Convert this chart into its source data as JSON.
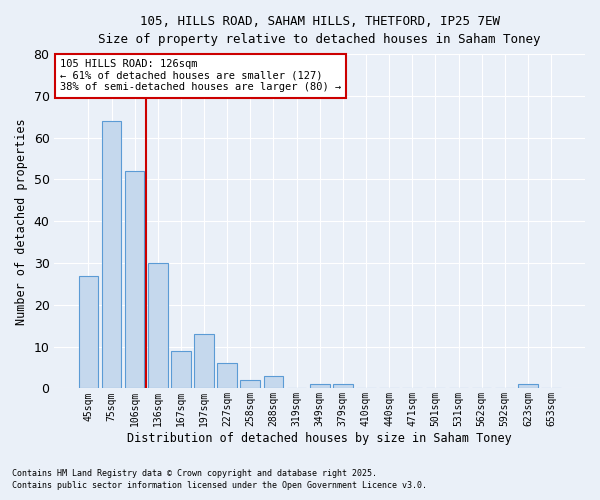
{
  "title1": "105, HILLS ROAD, SAHAM HILLS, THETFORD, IP25 7EW",
  "title2": "Size of property relative to detached houses in Saham Toney",
  "xlabel": "Distribution of detached houses by size in Saham Toney",
  "ylabel": "Number of detached properties",
  "categories": [
    "45sqm",
    "75sqm",
    "106sqm",
    "136sqm",
    "167sqm",
    "197sqm",
    "227sqm",
    "258sqm",
    "288sqm",
    "319sqm",
    "349sqm",
    "379sqm",
    "410sqm",
    "440sqm",
    "471sqm",
    "501sqm",
    "531sqm",
    "562sqm",
    "592sqm",
    "623sqm",
    "653sqm"
  ],
  "values": [
    27,
    64,
    52,
    30,
    9,
    13,
    6,
    2,
    3,
    0,
    1,
    1,
    0,
    0,
    0,
    0,
    0,
    0,
    0,
    1,
    0
  ],
  "bar_color": "#c5d8ed",
  "bar_edge_color": "#5b9bd5",
  "red_line_x": 2.5,
  "annotation_line1": "105 HILLS ROAD: 126sqm",
  "annotation_line2": "← 61% of detached houses are smaller (127)",
  "annotation_line3": "38% of semi-detached houses are larger (80) →",
  "annotation_box_color": "#ffffff",
  "annotation_box_edge": "#cc0000",
  "red_line_color": "#cc0000",
  "ylim": [
    0,
    80
  ],
  "yticks": [
    0,
    10,
    20,
    30,
    40,
    50,
    60,
    70,
    80
  ],
  "bg_color": "#eaf0f8",
  "grid_color": "#ffffff",
  "footnote1": "Contains HM Land Registry data © Crown copyright and database right 2025.",
  "footnote2": "Contains public sector information licensed under the Open Government Licence v3.0."
}
